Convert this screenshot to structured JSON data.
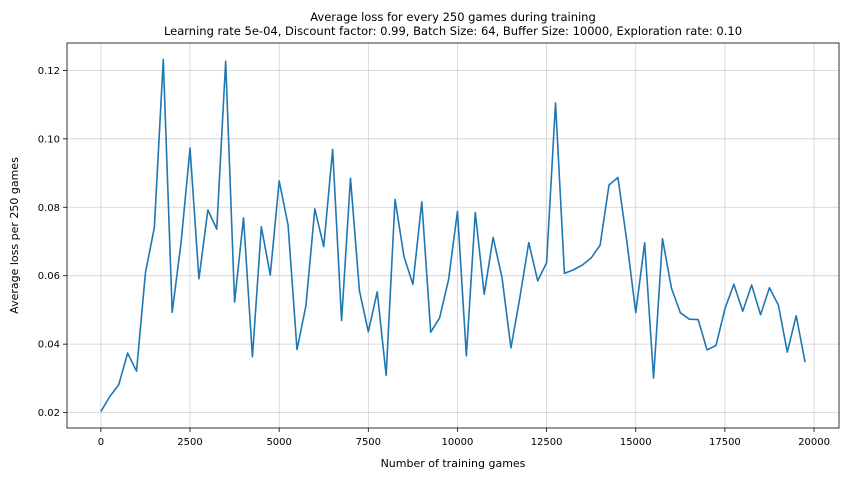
{
  "chart_data": {
    "type": "line",
    "title": "Average loss for every 250 games during training",
    "subtitle": "Learning rate 5e-04, Discount factor: 0.99, Batch Size: 64, Buffer Size: 10000, Exploration rate: 0.10",
    "xlabel": "Number of training games",
    "ylabel": "Average loss per 250 games",
    "xlim": [
      -950,
      20700
    ],
    "ylim": [
      0.0155,
      0.128
    ],
    "x_ticks": [
      0,
      2500,
      5000,
      7500,
      10000,
      12500,
      15000,
      17500,
      20000
    ],
    "y_ticks": [
      0.02,
      0.04,
      0.06,
      0.08,
      0.1,
      0.12
    ],
    "x_tick_labels": [
      "0",
      "2500",
      "5000",
      "7500",
      "10000",
      "12500",
      "15000",
      "17500",
      "20000"
    ],
    "y_tick_labels": [
      "0.02",
      "0.04",
      "0.06",
      "0.08",
      "0.10",
      "0.12"
    ],
    "grid": true,
    "color": "#1f77b4",
    "series": [
      {
        "x": [
          0,
          250,
          500,
          750,
          1000,
          1250,
          1500,
          1750,
          2000,
          2250,
          2500,
          2750,
          3000,
          3250,
          3500,
          3750,
          4000,
          4250,
          4500,
          4750,
          5000,
          5250,
          5500,
          5750,
          6000,
          6250,
          6500,
          6750,
          7000,
          7250,
          7500,
          7750,
          8000,
          8250,
          8500,
          8750,
          9000,
          9250,
          9500,
          9750,
          10000,
          10250,
          10500,
          10750,
          11000,
          11250,
          11500,
          11750,
          12000,
          12250,
          12500,
          12750,
          13000,
          13250,
          13500,
          13750,
          14000,
          14250,
          14500,
          14750,
          15000,
          15250,
          15500,
          15750,
          16000,
          16250,
          16500,
          16750,
          17000,
          17250,
          17500,
          17750,
          18000,
          18250,
          18500,
          18750,
          19000,
          19250,
          19500,
          19750
        ],
        "values": [
          0.0203,
          0.0247,
          0.0281,
          0.0374,
          0.0321,
          0.0609,
          0.0741,
          0.1232,
          0.0493,
          0.0698,
          0.0973,
          0.0591,
          0.0792,
          0.0736,
          0.1227,
          0.0523,
          0.0769,
          0.0363,
          0.0743,
          0.0602,
          0.0877,
          0.0748,
          0.0384,
          0.0512,
          0.0795,
          0.0685,
          0.0969,
          0.0469,
          0.0885,
          0.0557,
          0.0436,
          0.0553,
          0.0309,
          0.0823,
          0.0656,
          0.0575,
          0.0816,
          0.0435,
          0.0477,
          0.0588,
          0.0788,
          0.0366,
          0.0785,
          0.0546,
          0.0712,
          0.0594,
          0.0389,
          0.0536,
          0.0697,
          0.0585,
          0.0638,
          0.1105,
          0.0607,
          0.0617,
          0.0631,
          0.0652,
          0.0689,
          0.0865,
          0.0887,
          0.0701,
          0.0492,
          0.0696,
          0.0301,
          0.0708,
          0.0564,
          0.0492,
          0.0473,
          0.0472,
          0.0383,
          0.0396,
          0.0503,
          0.0575,
          0.0496,
          0.0573,
          0.0486,
          0.0565,
          0.0514,
          0.0377,
          0.0483,
          0.0347
        ]
      }
    ]
  }
}
